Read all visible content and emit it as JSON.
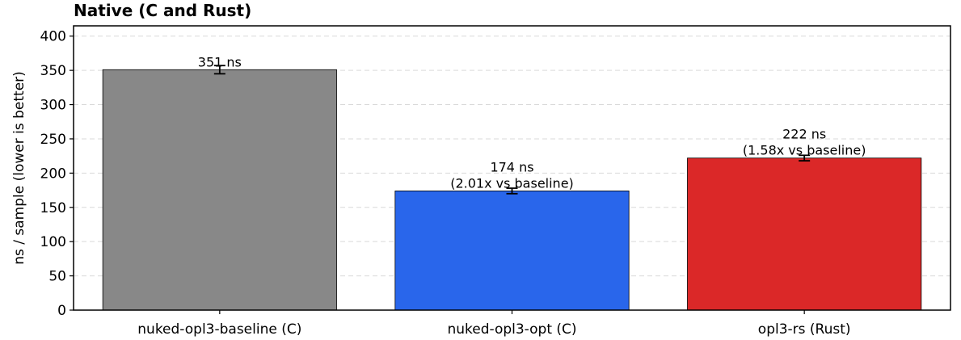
{
  "chart_data": {
    "type": "bar",
    "title": "Native (C and Rust)",
    "xlabel": "",
    "ylabel": "ns / sample  (lower is better)",
    "ylim": [
      0,
      415
    ],
    "yticks": [
      "0",
      "50",
      "100",
      "150",
      "200",
      "250",
      "300",
      "350",
      "400"
    ],
    "grid": "horizontal dashed",
    "categories": [
      "nuked-opl3-baseline (C)",
      "nuked-opl3-opt (C)",
      "opl3-rs (Rust)"
    ],
    "values": [
      351,
      174,
      222
    ],
    "errors": [
      6,
      4,
      4
    ],
    "colors": [
      "#888888",
      "#2966eb",
      "#db2828"
    ],
    "bar_labels": [
      [
        "351 ns"
      ],
      [
        "174 ns",
        "(2.01x vs baseline)"
      ],
      [
        "222 ns",
        "(1.58x vs baseline)"
      ]
    ]
  }
}
